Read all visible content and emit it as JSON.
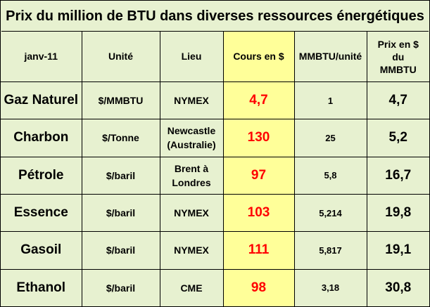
{
  "title": "Prix du million de BTU dans diverses ressources énergétiques",
  "headers": {
    "date": "janv-11",
    "unit": "Unité",
    "place": "Lieu",
    "price": "Cours en $",
    "mmbtu": "MMBTU/unité",
    "prix_l1": "Prix en $",
    "prix_l2": "du",
    "prix_l3": "MMBTU"
  },
  "rows": [
    {
      "name": "Gaz Naturel",
      "unit": "$/MMBTU",
      "place1": "NYMEX",
      "place2": "",
      "price": "4,7",
      "mmbtu": "1",
      "prix": "4,7"
    },
    {
      "name": "Charbon",
      "unit": "$/Tonne",
      "place1": "Newcastle",
      "place2": "(Australie)",
      "price": "130",
      "mmbtu": "25",
      "prix": "5,2"
    },
    {
      "name": "Pétrole",
      "unit": "$/baril",
      "place1": "Brent à",
      "place2": "Londres",
      "price": "97",
      "mmbtu": "5,8",
      "prix": "16,7"
    },
    {
      "name": "Essence",
      "unit": "$/baril",
      "place1": "NYMEX",
      "place2": "",
      "price": "103",
      "mmbtu": "5,214",
      "prix": "19,8"
    },
    {
      "name": "Gasoil",
      "unit": "$/baril",
      "place1": "NYMEX",
      "place2": "",
      "price": "111",
      "mmbtu": "5,817",
      "prix": "19,1"
    },
    {
      "name": "Ethanol",
      "unit": "$/baril",
      "place1": "CME",
      "place2": "",
      "price": "98",
      "mmbtu": "3,18",
      "prix": "30,8"
    }
  ],
  "colors": {
    "background": "#e7f1d0",
    "highlight_column": "#ffff99",
    "price_text": "#ff0000"
  }
}
